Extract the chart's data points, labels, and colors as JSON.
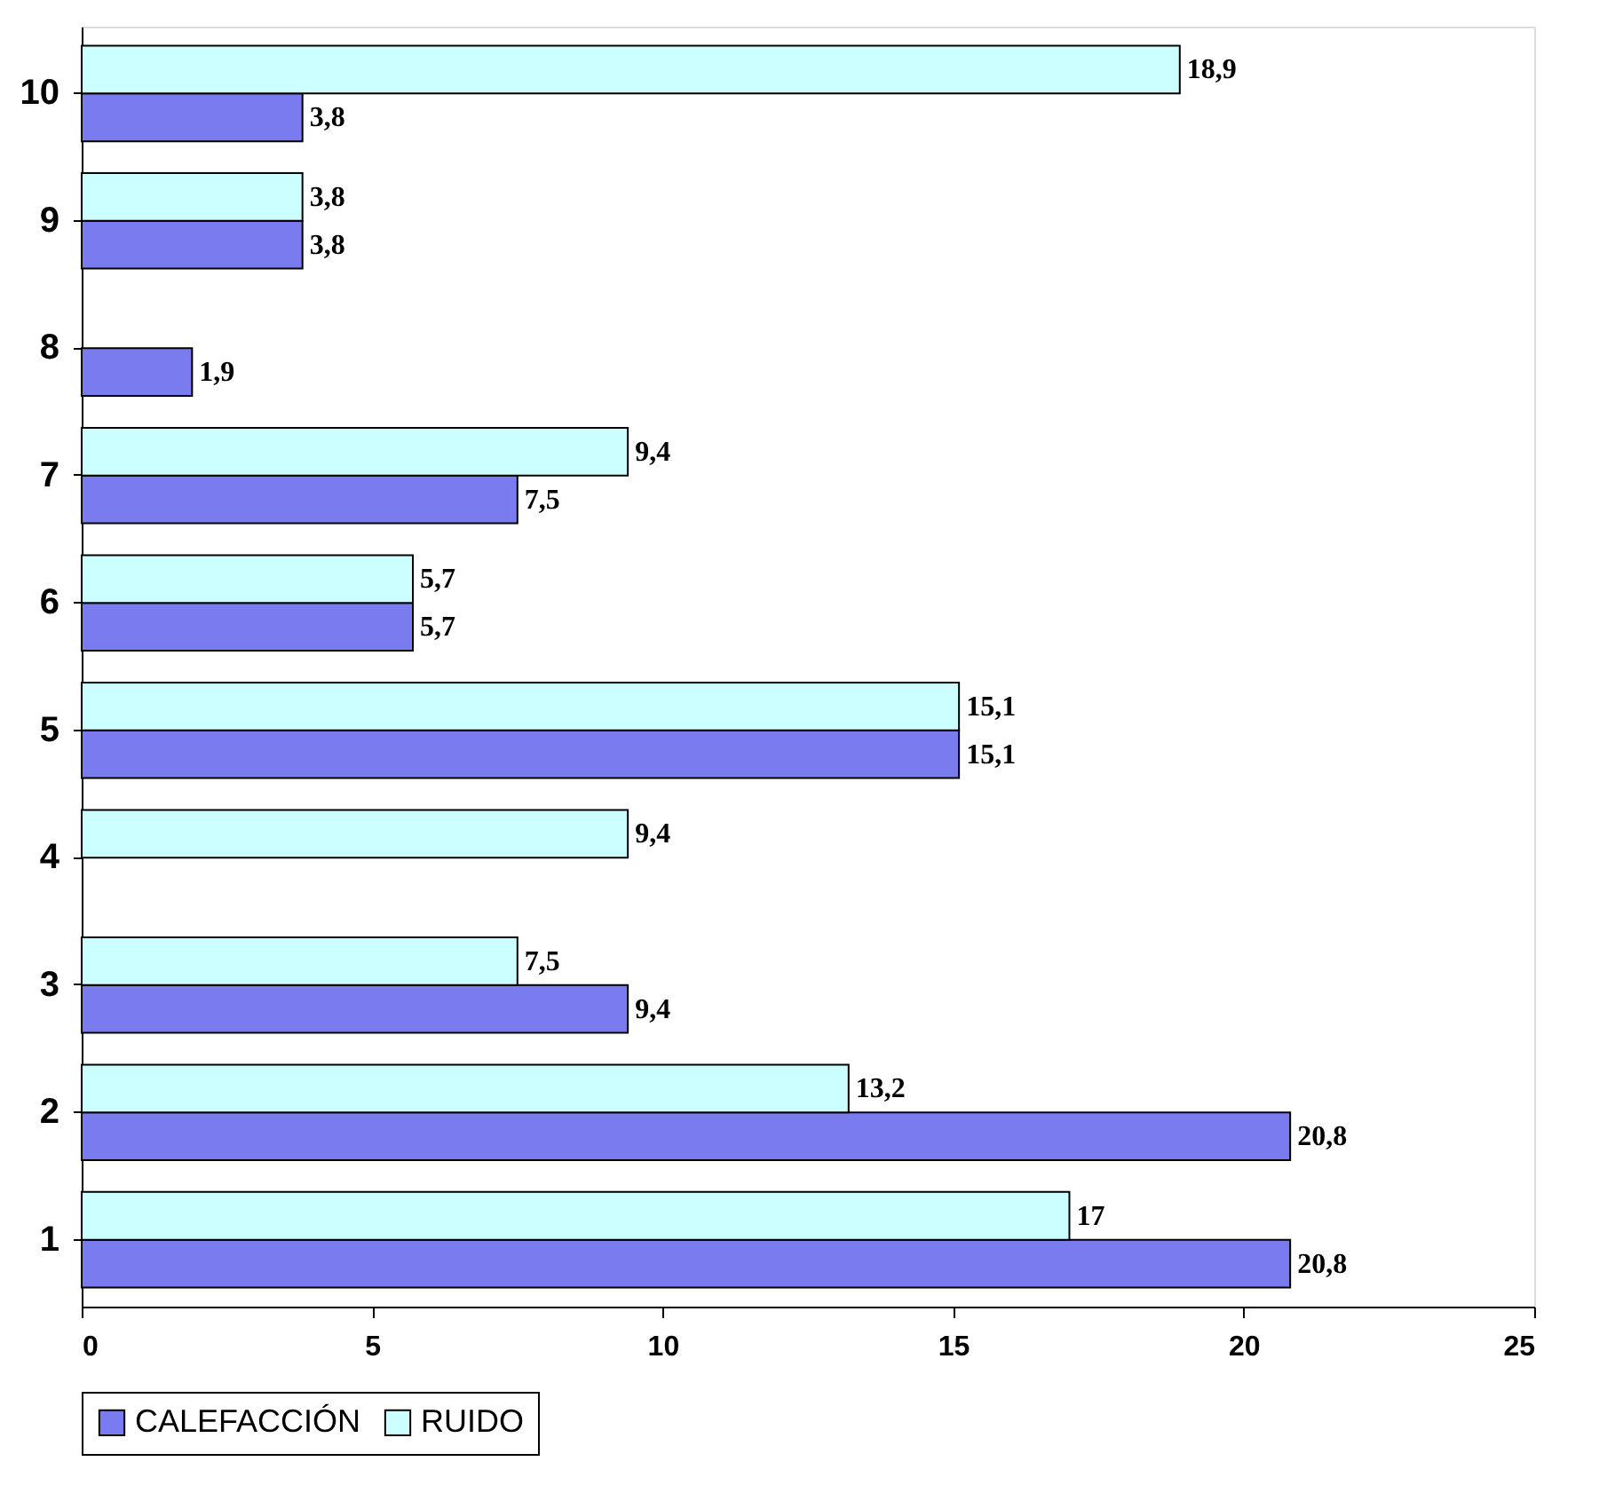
{
  "chart_data": {
    "type": "bar",
    "orientation": "horizontal",
    "categories": [
      "10",
      "9",
      "8",
      "7",
      "6",
      "5",
      "4",
      "3",
      "2",
      "1"
    ],
    "series": [
      {
        "name": "CALEFACCIÓN",
        "color": "#7b7bf0",
        "values": [
          3.8,
          3.8,
          1.9,
          7.5,
          5.7,
          15.1,
          null,
          9.4,
          20.8,
          20.8
        ],
        "value_labels": [
          "3,8",
          "3,8",
          "1,9",
          "7,5",
          "5,7",
          "15,1",
          null,
          "9,4",
          "20,8",
          "20,8"
        ]
      },
      {
        "name": "RUIDO",
        "color": "#ccffff",
        "values": [
          18.9,
          3.8,
          null,
          9.4,
          5.7,
          15.1,
          9.4,
          7.5,
          13.2,
          17
        ],
        "value_labels": [
          "18,9",
          "3,8",
          null,
          "9,4",
          "5,7",
          "15,1",
          "9,4",
          "7,5",
          "13,2",
          "17"
        ]
      }
    ],
    "xlim": [
      0,
      25
    ],
    "xticks": [
      0,
      5,
      10,
      15,
      20,
      25
    ],
    "grid": false,
    "legend": "bottom"
  }
}
